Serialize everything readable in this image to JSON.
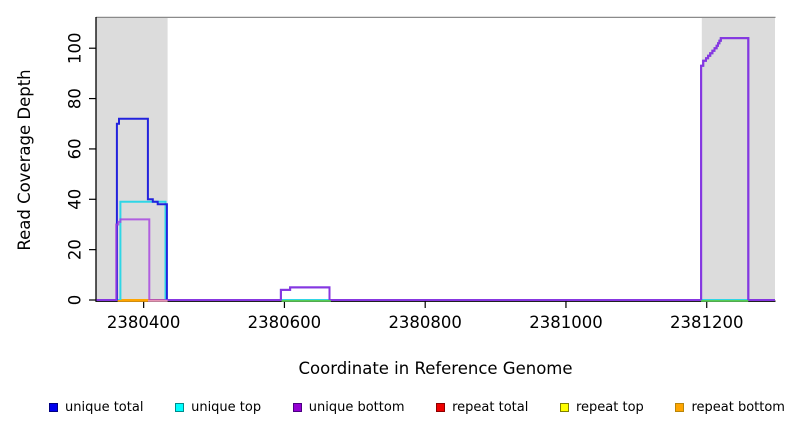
{
  "chart_data": {
    "type": "line",
    "subtype": "step-coverage",
    "title": "",
    "xlabel": "Coordinate in Reference Genome",
    "ylabel": "Read Coverage Depth",
    "xlim": [
      2380333,
      2381297
    ],
    "ylim": [
      0,
      112
    ],
    "x_ticks": [
      2380400,
      2380600,
      2380800,
      2381000,
      2381200
    ],
    "y_ticks": [
      0,
      20,
      40,
      60,
      80,
      100
    ],
    "grid": false,
    "legend_position": "bottom",
    "panel_shading_color": "#DCDCDC",
    "panel_top_border_color": "#8A8A8A",
    "shaded_regions": [
      {
        "from": 2380333,
        "to": 2380434
      },
      {
        "from": 2381193,
        "to": 2381297
      }
    ],
    "series": [
      {
        "name": "repeat total",
        "color": "#EE0000",
        "opacity": 1,
        "points": [
          [
            2380333,
            0
          ],
          [
            2381297,
            0
          ]
        ]
      },
      {
        "name": "repeat top",
        "color": "#FFFF00",
        "opacity": 1,
        "points": [
          [
            2380333,
            0
          ],
          [
            2381297,
            0
          ]
        ]
      },
      {
        "name": "repeat bottom",
        "color": "#FFA500",
        "opacity": 1,
        "points": [
          [
            2380333,
            0
          ],
          [
            2381297,
            0
          ]
        ]
      },
      {
        "name": "unique top",
        "color": "#2FD6E6",
        "opacity": 1,
        "points": [
          [
            2380333,
            0
          ],
          [
            2380367,
            0
          ],
          [
            2380367,
            39
          ],
          [
            2380431,
            39
          ],
          [
            2380431,
            0
          ],
          [
            2381297,
            0
          ]
        ]
      },
      {
        "name": "unique total",
        "color": "#2222DD",
        "opacity": 1,
        "points": [
          [
            2380333,
            0
          ],
          [
            2380362,
            0
          ],
          [
            2380362,
            70
          ],
          [
            2380365,
            70
          ],
          [
            2380365,
            72
          ],
          [
            2380406,
            72
          ],
          [
            2380406,
            40
          ],
          [
            2380413,
            40
          ],
          [
            2380413,
            39
          ],
          [
            2380420,
            39
          ],
          [
            2380420,
            38
          ],
          [
            2380433,
            38
          ],
          [
            2380433,
            0
          ],
          [
            2380595,
            0
          ],
          [
            2380595,
            4
          ],
          [
            2380608,
            4
          ],
          [
            2380608,
            5
          ],
          [
            2380664,
            5
          ],
          [
            2380664,
            0
          ],
          [
            2381192,
            0
          ],
          [
            2381192,
            93
          ],
          [
            2381195,
            93
          ],
          [
            2381195,
            95
          ],
          [
            2381199,
            95
          ],
          [
            2381199,
            96
          ],
          [
            2381202,
            96
          ],
          [
            2381202,
            97
          ],
          [
            2381205,
            97
          ],
          [
            2381205,
            98
          ],
          [
            2381208,
            98
          ],
          [
            2381208,
            99
          ],
          [
            2381211,
            99
          ],
          [
            2381211,
            100
          ],
          [
            2381214,
            100
          ],
          [
            2381214,
            101
          ],
          [
            2381216,
            101
          ],
          [
            2381216,
            102
          ],
          [
            2381218,
            102
          ],
          [
            2381218,
            103
          ],
          [
            2381220,
            103
          ],
          [
            2381220,
            104
          ],
          [
            2381259,
            104
          ],
          [
            2381259,
            0
          ],
          [
            2381297,
            0
          ]
        ]
      },
      {
        "name": "unique bottom",
        "color": "#A43CE2",
        "opacity": 0.78,
        "points": [
          [
            2380333,
            0
          ],
          [
            2380361,
            0
          ],
          [
            2380361,
            30
          ],
          [
            2380364,
            30
          ],
          [
            2380364,
            31
          ],
          [
            2380367,
            31
          ],
          [
            2380367,
            32
          ],
          [
            2380408,
            32
          ],
          [
            2380408,
            0
          ],
          [
            2380595,
            0
          ],
          [
            2380595,
            4
          ],
          [
            2380608,
            4
          ],
          [
            2380608,
            5
          ],
          [
            2380664,
            5
          ],
          [
            2380664,
            0
          ],
          [
            2381192,
            0
          ],
          [
            2381192,
            93
          ],
          [
            2381195,
            93
          ],
          [
            2381195,
            95
          ],
          [
            2381199,
            95
          ],
          [
            2381199,
            96
          ],
          [
            2381202,
            96
          ],
          [
            2381202,
            97
          ],
          [
            2381205,
            97
          ],
          [
            2381205,
            98
          ],
          [
            2381208,
            98
          ],
          [
            2381208,
            99
          ],
          [
            2381211,
            99
          ],
          [
            2381211,
            100
          ],
          [
            2381214,
            100
          ],
          [
            2381214,
            101
          ],
          [
            2381216,
            101
          ],
          [
            2381216,
            102
          ],
          [
            2381218,
            102
          ],
          [
            2381218,
            103
          ],
          [
            2381220,
            103
          ],
          [
            2381220,
            104
          ],
          [
            2381259,
            104
          ],
          [
            2381259,
            0
          ],
          [
            2381297,
            0
          ]
        ]
      }
    ],
    "baseline_overlays": [
      {
        "color": "#FFA500",
        "from": 2380363,
        "to": 2380406
      },
      {
        "color": "#E795B5",
        "from": 2380406,
        "to": 2380434
      },
      {
        "color": "#55CC55",
        "from": 2380596,
        "to": 2380666
      },
      {
        "color": "#55CC55",
        "from": 2381192,
        "to": 2381259
      }
    ],
    "legend": [
      {
        "label": "unique total",
        "color": "#0000EE",
        "edge": "#000080"
      },
      {
        "label": "unique top",
        "color": "#00FFFF",
        "edge": "#008B8B"
      },
      {
        "label": "unique bottom",
        "color": "#9400D3",
        "edge": "#4B0082"
      },
      {
        "label": "repeat total",
        "color": "#EE0000",
        "edge": "#8B0000"
      },
      {
        "label": "repeat top",
        "color": "#FFFF00",
        "edge": "#808000"
      },
      {
        "label": "repeat bottom",
        "color": "#FFA500",
        "edge": "#B8860B"
      }
    ]
  }
}
